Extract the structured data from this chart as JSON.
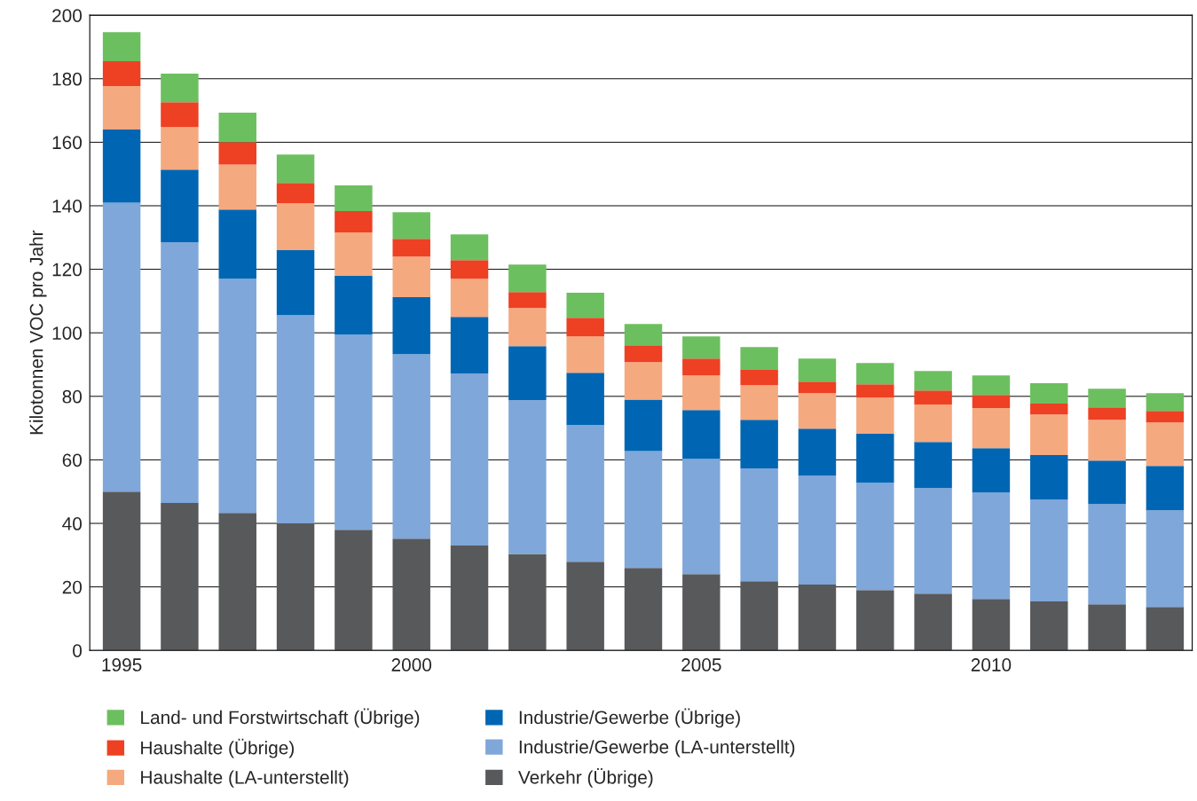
{
  "chart_data": {
    "type": "bar",
    "stacked": true,
    "ylabel": "Kilotonnen VOC pro Jahr",
    "x": [
      1995,
      1996,
      1997,
      1998,
      1999,
      2000,
      2001,
      2002,
      2003,
      2004,
      2005,
      2006,
      2007,
      2008,
      2009,
      2010,
      2011,
      2012,
      2013
    ],
    "xlim": [
      1994.45,
      2013.47
    ],
    "xticks": [
      1995,
      2000,
      2005,
      2010
    ],
    "ylim": [
      0,
      200
    ],
    "yticks": [
      0,
      20,
      40,
      60,
      80,
      100,
      120,
      140,
      160,
      180,
      200
    ],
    "grid": "y",
    "legend": "bottom",
    "series": [
      {
        "name": "Verkehr (Übrige)",
        "color": "#58595b",
        "values": [
          50,
          46.4,
          43.3,
          40,
          38,
          35.2,
          33,
          30.4,
          27.9,
          26,
          24,
          21.8,
          20.7,
          19,
          17.9,
          16.2,
          15.4,
          14.5,
          13.7
        ]
      },
      {
        "name": "Industrie/Gewerbe (LA-unterstellt)",
        "color": "#7fa7d9",
        "values": [
          91,
          82.1,
          73.7,
          65.6,
          61.4,
          58.1,
          54.2,
          48.4,
          43.1,
          36.8,
          36.3,
          35.5,
          34.3,
          33.8,
          33.2,
          33.5,
          32.1,
          31.6,
          30.4
        ]
      },
      {
        "name": "Industrie/Gewerbe (Übrige)",
        "color": "#0066b3",
        "values": [
          23,
          22.9,
          21.8,
          20.4,
          18.5,
          17.9,
          17.8,
          17,
          16.4,
          16.2,
          15.4,
          15.3,
          14.8,
          15.4,
          14.5,
          14,
          14,
          13.7,
          14
        ]
      },
      {
        "name": "Haushalte (LA-unterstellt)",
        "color": "#f5a97f",
        "values": [
          13.7,
          13.4,
          14.2,
          14.8,
          13.7,
          12.8,
          12,
          12,
          11.5,
          11.8,
          10.9,
          10.9,
          11.2,
          11.4,
          11.8,
          12.6,
          12.8,
          12.8,
          13.7
        ]
      },
      {
        "name": "Haushalte (Übrige)",
        "color": "#ee4023",
        "values": [
          7.8,
          7.8,
          7,
          6.4,
          6.7,
          5.6,
          5.9,
          5,
          5.8,
          5.3,
          5.3,
          4.8,
          3.6,
          4.2,
          4.4,
          4.1,
          3.4,
          3.9,
          3.6
        ]
      },
      {
        "name": "Land- und Forstwirtschaft (Übrige)",
        "color": "#6cbf5f",
        "values": [
          9.2,
          9,
          9.3,
          8.9,
          8.1,
          8.4,
          8.1,
          8.7,
          7.9,
          6.7,
          7,
          7.2,
          7.3,
          6.7,
          6.2,
          6.2,
          6.4,
          5.9,
          5.6
        ]
      }
    ]
  }
}
